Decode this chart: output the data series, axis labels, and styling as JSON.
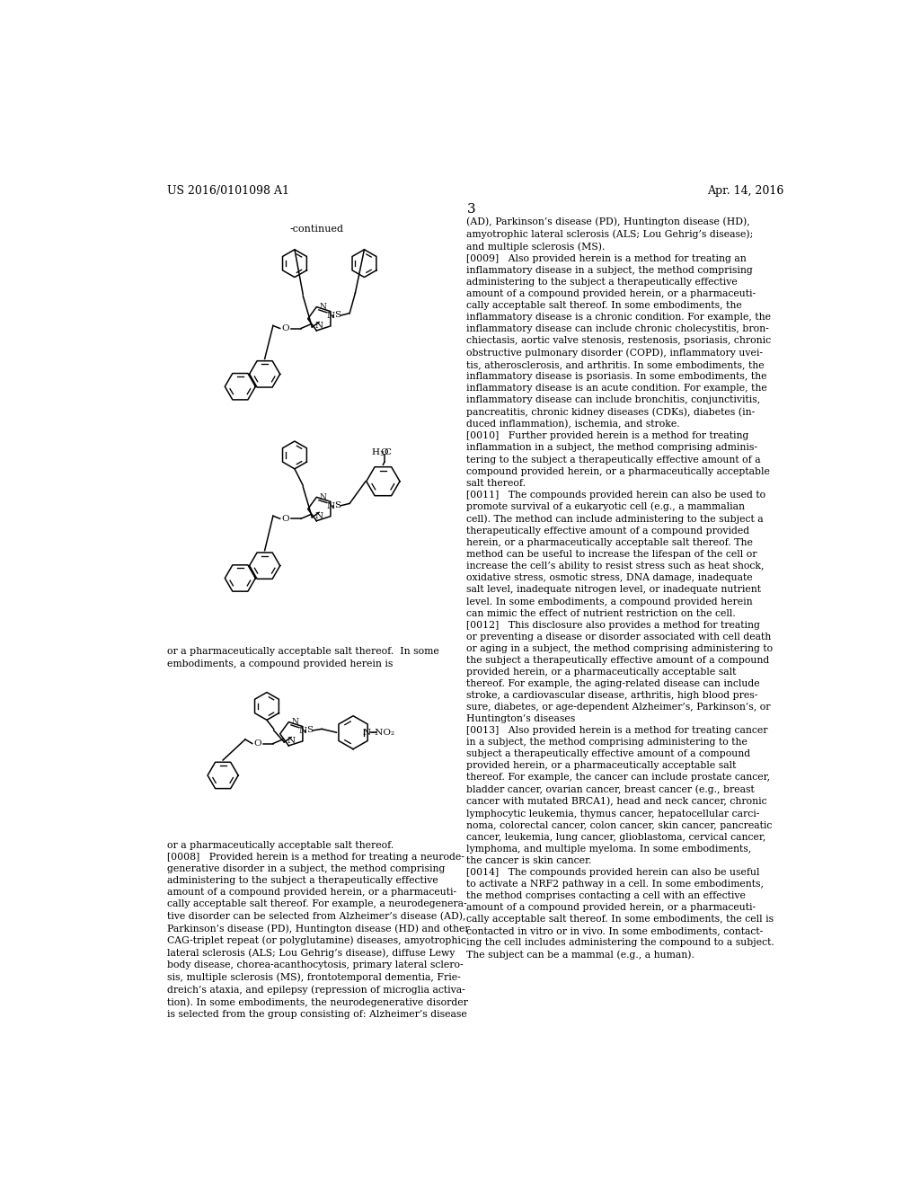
{
  "bg_color": "#ffffff",
  "header_left": "US 2016/0101098 A1",
  "header_right": "Apr. 14, 2016",
  "page_number": "3",
  "continued_label": "-continued",
  "left_caption1": "or a pharmaceutically acceptable salt thereof.  In some\nembodiments, a compound provided herein is",
  "left_caption2": "or a pharmaceutically acceptable salt thereof.\n[0008]   Provided herein is a method for treating a neurode-\ngenerative disorder in a subject, the method comprising\nadministering to the subject a therapeutically effective\namount of a compound provided herein, or a pharmaceuti-\ncally acceptable salt thereof. For example, a neurodegenera-\ntive disorder can be selected from Alzheimer’s disease (AD),\nParkinson’s disease (PD), Huntington disease (HD) and other\nCAG-triplet repeat (or polyglutamine) diseases, amyotrophic\nlateral sclerosis (ALS; Lou Gehrig’s disease), diffuse Lewy\nbody disease, chorea-acanthocytosis, primary lateral sclero-\nsis, multiple sclerosis (MS), frontotemporal dementia, Frie-\ndreich’s ataxia, and epilepsy (repression of microglia activa-\ntion). In some embodiments, the neurodegenerative disorder\nis selected from the group consisting of: Alzheimer’s disease",
  "right_col_text": "(AD), Parkinson’s disease (PD), Huntington disease (HD),\namyotrophic lateral sclerosis (ALS; Lou Gehrig’s disease);\nand multiple sclerosis (MS).\n[0009]   Also provided herein is a method for treating an\ninflammatory disease in a subject, the method comprising\nadministering to the subject a therapeutically effective\namount of a compound provided herein, or a pharmaceuti-\ncally acceptable salt thereof. In some embodiments, the\ninflammatory disease is a chronic condition. For example, the\ninflammatory disease can include chronic cholecystitis, bron-\nchiectasis, aortic valve stenosis, restenosis, psoriasis, chronic\nobstructive pulmonary disorder (COPD), inflammatory uvei-\ntis, atherosclerosis, and arthritis. In some embodiments, the\ninflammatory disease is psoriasis. In some embodiments, the\ninflammatory disease is an acute condition. For example, the\ninflammatory disease can include bronchitis, conjunctivitis,\npancreatitis, chronic kidney diseases (CDKs), diabetes (in-\nduced inflammation), ischemia, and stroke.\n[0010]   Further provided herein is a method for treating\ninflammation in a subject, the method comprising adminis-\ntering to the subject a therapeutically effective amount of a\ncompound provided herein, or a pharmaceutically acceptable\nsalt thereof.\n[0011]   The compounds provided herein can also be used to\npromote survival of a eukaryotic cell (e.g., a mammalian\ncell). The method can include administering to the subject a\ntherapeutically effective amount of a compound provided\nherein, or a pharmaceutically acceptable salt thereof. The\nmethod can be useful to increase the lifespan of the cell or\nincrease the cell’s ability to resist stress such as heat shock,\noxidative stress, osmotic stress, DNA damage, inadequate\nsalt level, inadequate nitrogen level, or inadequate nutrient\nlevel. In some embodiments, a compound provided herein\ncan mimic the effect of nutrient restriction on the cell.\n[0012]   This disclosure also provides a method for treating\nor preventing a disease or disorder associated with cell death\nor aging in a subject, the method comprising administering to\nthe subject a therapeutically effective amount of a compound\nprovided herein, or a pharmaceutically acceptable salt\nthereof. For example, the aging-related disease can include\nstroke, a cardiovascular disease, arthritis, high blood pres-\nsure, diabetes, or age-dependent Alzheimer’s, Parkinson’s, or\nHuntington’s diseases\n[0013]   Also provided herein is a method for treating cancer\nin a subject, the method comprising administering to the\nsubject a therapeutically effective amount of a compound\nprovided herein, or a pharmaceutically acceptable salt\nthereof. For example, the cancer can include prostate cancer,\nbladder cancer, ovarian cancer, breast cancer (e.g., breast\ncancer with mutated BRCA1), head and neck cancer, chronic\nlymphocytic leukemia, thymus cancer, hepatocellular carci-\nnoma, colorectal cancer, colon cancer, skin cancer, pancreatic\ncancer, leukemia, lung cancer, glioblastoma, cervical cancer,\nlymphoma, and multiple myeloma. In some embodiments,\nthe cancer is skin cancer.\n[0014]   The compounds provided herein can also be useful\nto activate a NRF2 pathway in a cell. In some embodiments,\nthe method comprises contacting a cell with an effective\namount of a compound provided herein, or a pharmaceuti-\ncally acceptable salt thereof. In some embodiments, the cell is\ncontacted in vitro or in vivo. In some embodiments, contact-\ning the cell includes administering the compound to a subject.\nThe subject can be a mammal (e.g., a human).",
  "font_size_body": 7.8,
  "font_size_header": 9.0,
  "font_size_page": 11
}
